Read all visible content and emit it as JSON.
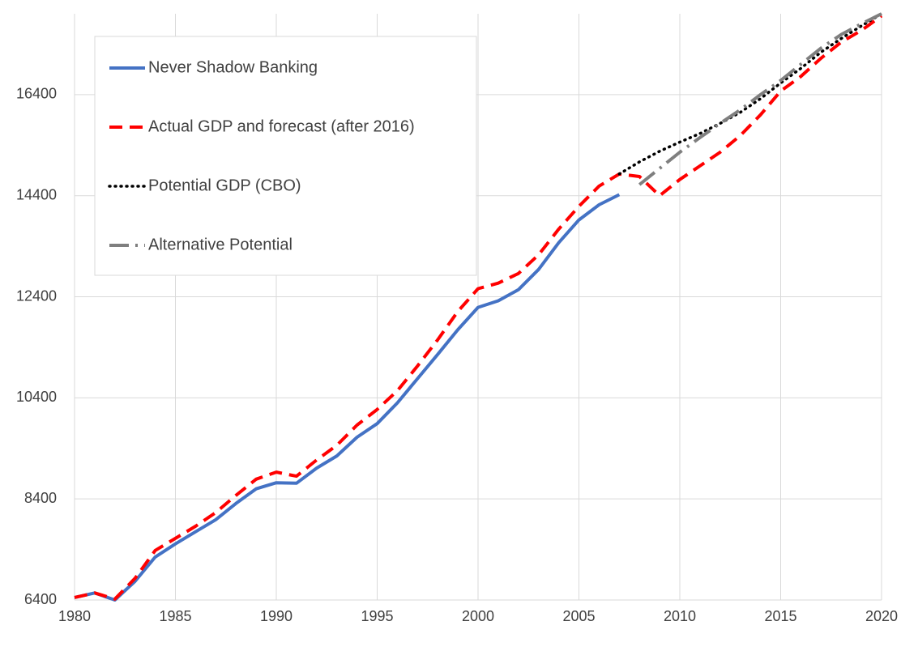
{
  "chart_data": {
    "type": "line",
    "x": [
      1980,
      1981,
      1982,
      1983,
      1984,
      1985,
      1986,
      1987,
      1988,
      1989,
      1990,
      1991,
      1992,
      1993,
      1994,
      1995,
      1996,
      1997,
      1998,
      1999,
      2000,
      2001,
      2002,
      2003,
      2004,
      2005,
      2006,
      2007,
      2008,
      2009,
      2010,
      2011,
      2012,
      2013,
      2014,
      2015,
      2016,
      2017,
      2018,
      2019,
      2020
    ],
    "xlim": [
      1980,
      2020
    ],
    "xticks": [
      1980,
      1985,
      1990,
      1995,
      2000,
      2005,
      2010,
      2015,
      2020
    ],
    "ylim": [
      6400,
      18000
    ],
    "yticks": [
      6400,
      8400,
      10400,
      12400,
      14400,
      16400
    ],
    "grid": true,
    "legend": "upper left",
    "series": [
      {
        "name": "Never Shadow Banking",
        "color": "#4472c4",
        "dash": "solid",
        "values": [
          6450,
          6540,
          6400,
          6770,
          7250,
          7510,
          7750,
          7990,
          8310,
          8600,
          8720,
          8710,
          9010,
          9250,
          9620,
          9890,
          10300,
          10780,
          11260,
          11750,
          12190,
          12320,
          12540,
          12940,
          13470,
          13920,
          14220,
          14420,
          null,
          null,
          null,
          null,
          null,
          null,
          null,
          null,
          null,
          null,
          null,
          null,
          null
        ]
      },
      {
        "name": "Actual GDP and forecast (after 2016)",
        "color": "#ff0000",
        "dash": "dashed",
        "values": [
          6450,
          6540,
          6420,
          6830,
          7380,
          7620,
          7860,
          8130,
          8470,
          8790,
          8930,
          8850,
          9170,
          9460,
          9860,
          10170,
          10540,
          11030,
          11550,
          12110,
          12560,
          12670,
          12860,
          13230,
          13740,
          14190,
          14590,
          14830,
          14780,
          14400,
          14720,
          14990,
          15260,
          15590,
          16000,
          16470,
          16760,
          17120,
          17440,
          17670,
          17960
        ]
      },
      {
        "name": "Potential GDP (CBO)",
        "color": "#000000",
        "dash": "dotted",
        "values": [
          null,
          null,
          null,
          null,
          null,
          null,
          null,
          null,
          null,
          null,
          null,
          null,
          null,
          null,
          null,
          null,
          null,
          null,
          null,
          null,
          null,
          null,
          null,
          null,
          null,
          null,
          null,
          14830,
          15070,
          15280,
          15460,
          15630,
          15830,
          16050,
          16320,
          16630,
          16920,
          17240,
          17510,
          17760,
          18000
        ]
      },
      {
        "name": "Alternative Potential",
        "color": "#7f7f7f",
        "dash": "dashdot",
        "values": [
          null,
          null,
          null,
          null,
          null,
          null,
          null,
          null,
          null,
          null,
          null,
          null,
          null,
          null,
          null,
          null,
          null,
          null,
          null,
          null,
          null,
          null,
          null,
          null,
          null,
          null,
          null,
          null,
          14620,
          14940,
          15260,
          15550,
          15830,
          16100,
          16400,
          16680,
          17000,
          17320,
          17590,
          17800,
          18000
        ]
      }
    ]
  }
}
